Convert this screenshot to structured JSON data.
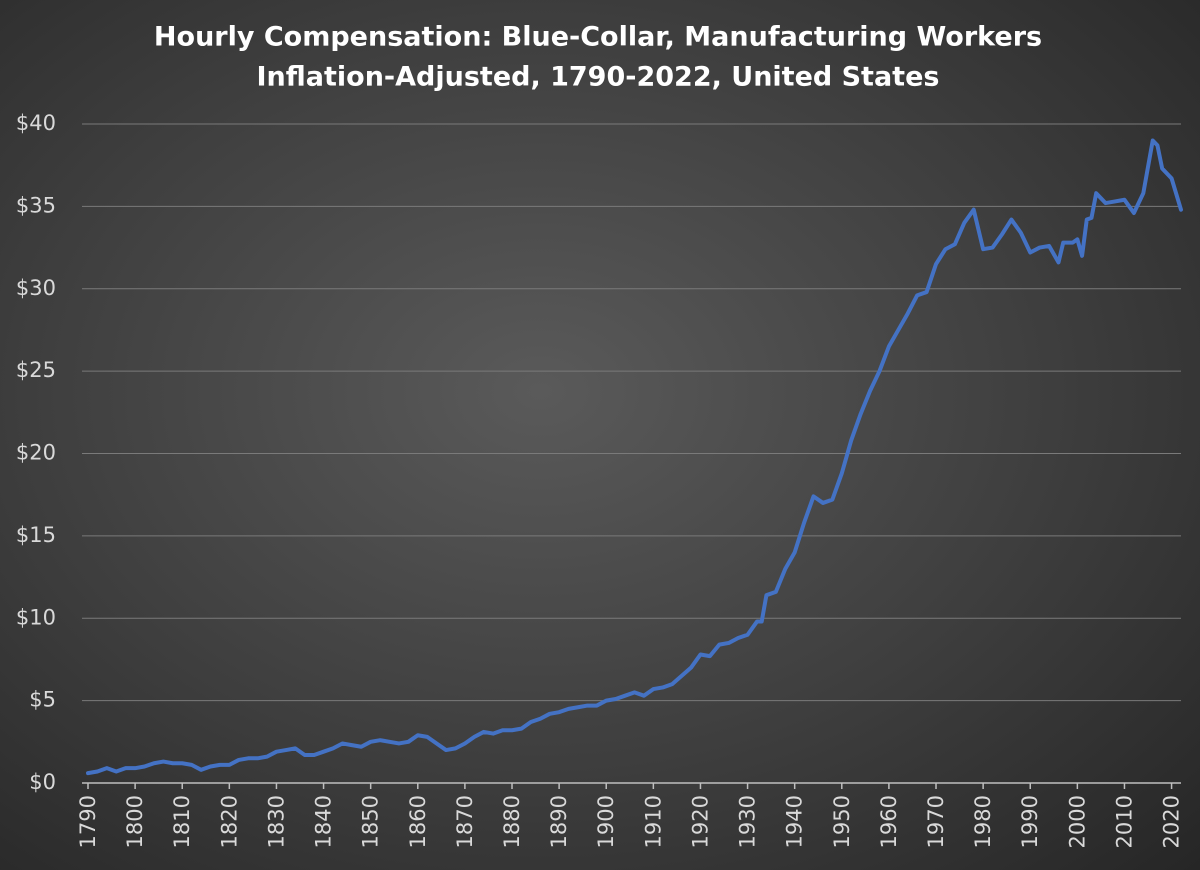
{
  "chart_data": {
    "type": "line",
    "title": "Hourly Compensation: Blue-Collar, Manufacturing Workers",
    "subtitle": "Inflation-Adjusted, 1790-2022, United States",
    "color": "#4472c4",
    "grid": true,
    "xlim": [
      1790,
      2022
    ],
    "xticks": [
      1790,
      1800,
      1810,
      1820,
      1830,
      1840,
      1850,
      1860,
      1870,
      1880,
      1890,
      1900,
      1910,
      1920,
      1930,
      1940,
      1950,
      1960,
      1970,
      1980,
      1990,
      2000,
      2010,
      2020
    ],
    "ylim": [
      0,
      40
    ],
    "yticks": [
      {
        "value": 0,
        "label": "$0"
      },
      {
        "value": 5,
        "label": "$5"
      },
      {
        "value": 10,
        "label": "$10"
      },
      {
        "value": 15,
        "label": "$15"
      },
      {
        "value": 20,
        "label": "$20"
      },
      {
        "value": 25,
        "label": "$25"
      },
      {
        "value": 30,
        "label": "$30"
      },
      {
        "value": 35,
        "label": "$35"
      },
      {
        "value": 40,
        "label": "$40"
      }
    ],
    "x": [
      1790,
      1792,
      1794,
      1796,
      1798,
      1800,
      1802,
      1804,
      1806,
      1808,
      1810,
      1812,
      1814,
      1816,
      1818,
      1820,
      1822,
      1824,
      1826,
      1828,
      1830,
      1832,
      1834,
      1836,
      1838,
      1840,
      1842,
      1844,
      1846,
      1848,
      1850,
      1852,
      1854,
      1856,
      1858,
      1860,
      1862,
      1864,
      1866,
      1868,
      1870,
      1872,
      1874,
      1876,
      1878,
      1880,
      1882,
      1884,
      1886,
      1888,
      1890,
      1892,
      1894,
      1896,
      1898,
      1900,
      1902,
      1904,
      1906,
      1908,
      1910,
      1912,
      1914,
      1916,
      1918,
      1920,
      1922,
      1924,
      1926,
      1928,
      1930,
      1932,
      1933,
      1934,
      1936,
      1938,
      1940,
      1942,
      1944,
      1946,
      1948,
      1950,
      1952,
      1954,
      1956,
      1958,
      1960,
      1962,
      1964,
      1966,
      1968,
      1970,
      1972,
      1974,
      1976,
      1978,
      1980,
      1982,
      1984,
      1986,
      1988,
      1990,
      1992,
      1994,
      1996,
      1997,
      1999,
      2000,
      2001,
      2002,
      2003,
      2004,
      2006,
      2008,
      2010,
      2012,
      2014,
      2016,
      2017,
      2018,
      2020,
      2022
    ],
    "values": [
      0.6,
      0.7,
      0.9,
      0.7,
      0.9,
      0.9,
      1.0,
      1.2,
      1.3,
      1.2,
      1.2,
      1.1,
      0.8,
      1.0,
      1.1,
      1.1,
      1.4,
      1.5,
      1.5,
      1.6,
      1.9,
      2.0,
      2.1,
      1.7,
      1.7,
      1.9,
      2.1,
      2.4,
      2.3,
      2.2,
      2.5,
      2.6,
      2.5,
      2.4,
      2.5,
      2.9,
      2.8,
      2.4,
      2.0,
      2.1,
      2.4,
      2.8,
      3.1,
      3.0,
      3.2,
      3.2,
      3.3,
      3.7,
      3.9,
      4.2,
      4.3,
      4.5,
      4.6,
      4.7,
      4.7,
      5.0,
      5.1,
      5.3,
      5.5,
      5.3,
      5.7,
      5.8,
      6.0,
      6.5,
      7.0,
      7.8,
      7.7,
      8.4,
      8.5,
      8.8,
      9.0,
      9.8,
      9.8,
      11.4,
      11.6,
      13.0,
      14.0,
      15.8,
      17.4,
      17.0,
      17.2,
      18.8,
      20.8,
      22.4,
      23.8,
      25.0,
      26.5,
      27.5,
      28.5,
      29.6,
      29.8,
      31.5,
      32.4,
      32.7,
      34.0,
      34.8,
      32.4,
      32.5,
      33.3,
      34.2,
      33.4,
      32.2,
      32.5,
      32.6,
      31.6,
      32.8,
      32.8,
      33.0,
      32.0,
      34.2,
      34.3,
      35.8,
      35.2,
      35.3,
      35.4,
      34.6,
      35.8,
      39.0,
      38.7,
      37.3,
      36.7,
      34.8
    ]
  }
}
